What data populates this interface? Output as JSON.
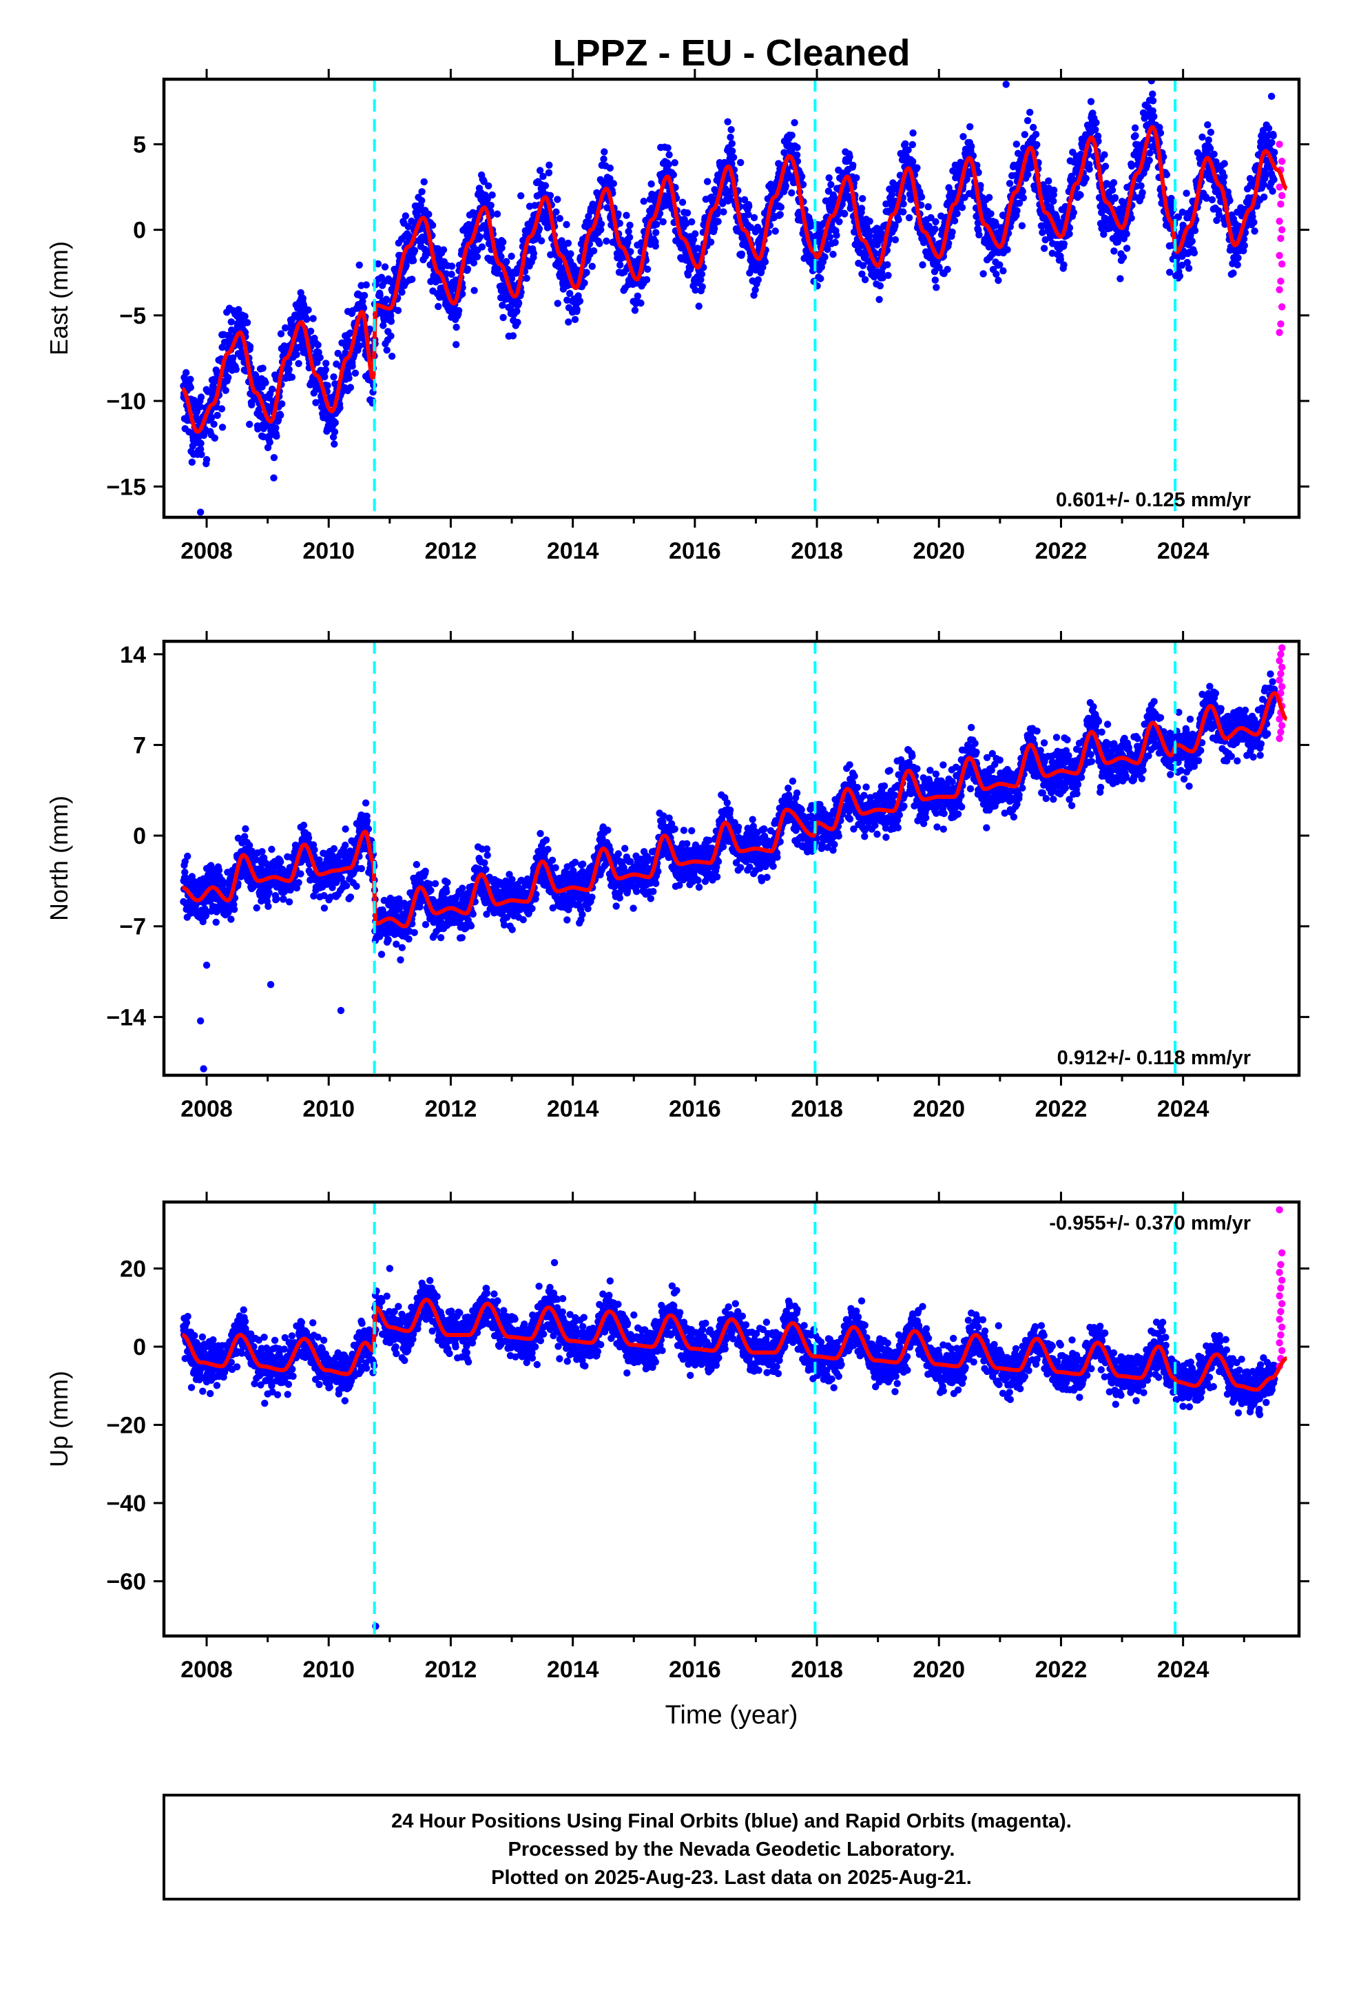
{
  "title": "LPPZ  - EU - Cleaned",
  "chart_data": [
    {
      "type": "scatter",
      "ylabel": "East (mm)",
      "xlim": [
        2007.3,
        2025.9
      ],
      "ylim": [
        -16.8,
        8.8
      ],
      "yticks": [
        5,
        0,
        -5,
        -10,
        -15
      ],
      "xticks": [
        2008,
        2010,
        2012,
        2014,
        2016,
        2018,
        2020,
        2022,
        2024
      ],
      "rate_text": "0.601+/- 0.125 mm/yr",
      "rate_position": "bottom-right",
      "steps": [
        2010.75,
        2017.97,
        2023.87
      ],
      "model": [
        [
          2007.6,
          -9.3
        ],
        [
          2007.85,
          -11.8
        ],
        [
          2008.1,
          -10.2
        ],
        [
          2008.35,
          -7.2
        ],
        [
          2008.55,
          -6.0
        ],
        [
          2008.8,
          -9.5
        ],
        [
          2009.05,
          -11.2
        ],
        [
          2009.3,
          -7.5
        ],
        [
          2009.55,
          -5.4
        ],
        [
          2009.8,
          -8.5
        ],
        [
          2010.05,
          -10.6
        ],
        [
          2010.3,
          -7.5
        ],
        [
          2010.55,
          -4.8
        ],
        [
          2010.73,
          -8.7
        ],
        [
          2010.77,
          -4.4
        ],
        [
          2011.0,
          -4.6
        ],
        [
          2011.3,
          -1.0
        ],
        [
          2011.55,
          0.7
        ],
        [
          2011.8,
          -2.5
        ],
        [
          2012.05,
          -4.3
        ],
        [
          2012.3,
          -0.8
        ],
        [
          2012.55,
          1.3
        ],
        [
          2012.8,
          -2.0
        ],
        [
          2013.05,
          -3.9
        ],
        [
          2013.3,
          -0.4
        ],
        [
          2013.55,
          1.9
        ],
        [
          2013.8,
          -1.5
        ],
        [
          2014.05,
          -3.4
        ],
        [
          2014.3,
          0.0
        ],
        [
          2014.55,
          2.4
        ],
        [
          2014.8,
          -1.0
        ],
        [
          2015.05,
          -2.9
        ],
        [
          2015.3,
          0.6
        ],
        [
          2015.55,
          3.1
        ],
        [
          2015.8,
          -0.5
        ],
        [
          2016.05,
          -2.2
        ],
        [
          2016.3,
          1.2
        ],
        [
          2016.55,
          3.7
        ],
        [
          2016.8,
          0.0
        ],
        [
          2017.05,
          -1.7
        ],
        [
          2017.3,
          1.9
        ],
        [
          2017.55,
          4.3
        ],
        [
          2017.95,
          -1.3
        ],
        [
          2018.0,
          -1.6
        ],
        [
          2018.25,
          0.8
        ],
        [
          2018.5,
          3.1
        ],
        [
          2018.75,
          -0.6
        ],
        [
          2019.0,
          -2.1
        ],
        [
          2019.25,
          0.9
        ],
        [
          2019.5,
          3.6
        ],
        [
          2019.75,
          -0.1
        ],
        [
          2020.0,
          -1.6
        ],
        [
          2020.25,
          1.5
        ],
        [
          2020.5,
          4.2
        ],
        [
          2020.75,
          0.3
        ],
        [
          2021.0,
          -1.0
        ],
        [
          2021.25,
          2.2
        ],
        [
          2021.5,
          4.8
        ],
        [
          2021.75,
          1.0
        ],
        [
          2022.0,
          -0.4
        ],
        [
          2022.25,
          2.7
        ],
        [
          2022.5,
          5.4
        ],
        [
          2022.75,
          1.6
        ],
        [
          2023.0,
          0.1
        ],
        [
          2023.25,
          3.3
        ],
        [
          2023.5,
          6.0
        ],
        [
          2023.8,
          0.5
        ],
        [
          2023.9,
          -1.3
        ],
        [
          2024.1,
          0.2
        ],
        [
          2024.4,
          4.2
        ],
        [
          2024.6,
          2.6
        ],
        [
          2024.85,
          -0.9
        ],
        [
          2025.1,
          1.2
        ],
        [
          2025.35,
          4.6
        ],
        [
          2025.55,
          3.5
        ],
        [
          2025.7,
          2.4
        ]
      ],
      "noise": 1.6,
      "rapid": [
        -6.0,
        -5.5,
        -4.5,
        -3.5,
        -3.0,
        -2.0,
        -1.5,
        -0.5,
        0.0,
        0.5,
        1.5,
        2.0,
        2.5,
        3.5,
        4.0,
        5.0
      ]
    },
    {
      "type": "scatter",
      "ylabel": "North (mm)",
      "xlim": [
        2007.3,
        2025.9
      ],
      "ylim": [
        -18.5,
        15.0
      ],
      "yticks": [
        14,
        7,
        0,
        -7,
        -14
      ],
      "xticks": [
        2008,
        2010,
        2012,
        2014,
        2016,
        2018,
        2020,
        2022,
        2024
      ],
      "rate_text": "0.912+/- 0.118 mm/yr",
      "rate_position": "bottom-right",
      "steps": [
        2010.75,
        2017.97,
        2023.87
      ],
      "model": [
        [
          2007.6,
          -4.0
        ],
        [
          2007.85,
          -5.0
        ],
        [
          2008.1,
          -4.0
        ],
        [
          2008.35,
          -5.0
        ],
        [
          2008.6,
          -1.5
        ],
        [
          2008.85,
          -3.5
        ],
        [
          2009.1,
          -3.2
        ],
        [
          2009.35,
          -3.5
        ],
        [
          2009.6,
          -0.7
        ],
        [
          2009.85,
          -3.0
        ],
        [
          2010.1,
          -2.7
        ],
        [
          2010.35,
          -2.5
        ],
        [
          2010.6,
          0.3
        ],
        [
          2010.73,
          -2.0
        ],
        [
          2010.77,
          -6.8
        ],
        [
          2011.0,
          -6.4
        ],
        [
          2011.25,
          -7.0
        ],
        [
          2011.5,
          -4.0
        ],
        [
          2011.75,
          -6.0
        ],
        [
          2012.0,
          -5.6
        ],
        [
          2012.25,
          -6.0
        ],
        [
          2012.5,
          -3.0
        ],
        [
          2012.75,
          -5.3
        ],
        [
          2013.0,
          -5.0
        ],
        [
          2013.25,
          -5.1
        ],
        [
          2013.5,
          -2.0
        ],
        [
          2013.75,
          -4.3
        ],
        [
          2014.0,
          -4.0
        ],
        [
          2014.25,
          -4.2
        ],
        [
          2014.5,
          -1.0
        ],
        [
          2014.75,
          -3.3
        ],
        [
          2015.0,
          -3.0
        ],
        [
          2015.25,
          -3.2
        ],
        [
          2015.5,
          0.0
        ],
        [
          2015.75,
          -2.2
        ],
        [
          2016.0,
          -2.0
        ],
        [
          2016.25,
          -2.1
        ],
        [
          2016.5,
          1.0
        ],
        [
          2016.75,
          -1.2
        ],
        [
          2017.0,
          -1.0
        ],
        [
          2017.25,
          -1.2
        ],
        [
          2017.5,
          2.0
        ],
        [
          2017.95,
          0.0
        ],
        [
          2018.0,
          1.0
        ],
        [
          2018.25,
          0.5
        ],
        [
          2018.5,
          3.6
        ],
        [
          2018.75,
          1.7
        ],
        [
          2019.0,
          2.0
        ],
        [
          2019.25,
          1.9
        ],
        [
          2019.5,
          5.0
        ],
        [
          2019.75,
          2.8
        ],
        [
          2020.0,
          3.0
        ],
        [
          2020.25,
          3.0
        ],
        [
          2020.5,
          6.0
        ],
        [
          2020.75,
          3.6
        ],
        [
          2021.0,
          4.0
        ],
        [
          2021.25,
          3.8
        ],
        [
          2021.5,
          7.0
        ],
        [
          2021.75,
          4.6
        ],
        [
          2022.0,
          5.0
        ],
        [
          2022.25,
          4.8
        ],
        [
          2022.5,
          8.0
        ],
        [
          2022.75,
          5.6
        ],
        [
          2023.0,
          6.0
        ],
        [
          2023.25,
          5.6
        ],
        [
          2023.5,
          8.7
        ],
        [
          2023.8,
          6.2
        ],
        [
          2023.9,
          7.0
        ],
        [
          2024.15,
          6.5
        ],
        [
          2024.45,
          10.0
        ],
        [
          2024.7,
          7.5
        ],
        [
          2024.95,
          8.3
        ],
        [
          2025.2,
          7.8
        ],
        [
          2025.5,
          11.0
        ],
        [
          2025.7,
          9.0
        ]
      ],
      "noise": 1.5,
      "rapid": [
        7.5,
        8.0,
        8.5,
        9.0,
        9.5,
        10.0,
        10.5,
        11.0,
        11.5,
        12.0,
        12.5,
        13.0,
        13.5,
        14.0,
        14.5
      ]
    },
    {
      "type": "scatter",
      "ylabel": "Up (mm)",
      "xlabel": "Time (year)",
      "xlim": [
        2007.3,
        2025.9
      ],
      "ylim": [
        -74,
        37
      ],
      "yticks": [
        20,
        0,
        -20,
        -40,
        -60
      ],
      "xticks": [
        2008,
        2010,
        2012,
        2014,
        2016,
        2018,
        2020,
        2022,
        2024
      ],
      "rate_text": "-0.955+/- 0.370 mm/yr",
      "rate_position": "top-right",
      "steps": [
        2010.75,
        2017.97,
        2023.87
      ],
      "model": [
        [
          2007.6,
          3.0
        ],
        [
          2007.9,
          -4.0
        ],
        [
          2008.25,
          -5.0
        ],
        [
          2008.55,
          3.0
        ],
        [
          2008.9,
          -5.0
        ],
        [
          2009.25,
          -6.0
        ],
        [
          2009.6,
          2.0
        ],
        [
          2009.95,
          -6.0
        ],
        [
          2010.3,
          -7.0
        ],
        [
          2010.6,
          1.0
        ],
        [
          2010.73,
          -1.0
        ],
        [
          2010.77,
          10.0
        ],
        [
          2011.0,
          5.0
        ],
        [
          2011.3,
          4.0
        ],
        [
          2011.6,
          12.0
        ],
        [
          2011.95,
          3.0
        ],
        [
          2012.3,
          3.0
        ],
        [
          2012.6,
          11.0
        ],
        [
          2012.95,
          2.5
        ],
        [
          2013.3,
          2.0
        ],
        [
          2013.6,
          10.0
        ],
        [
          2013.95,
          1.5
        ],
        [
          2014.3,
          1.0
        ],
        [
          2014.6,
          9.0
        ],
        [
          2014.95,
          0.5
        ],
        [
          2015.3,
          0.0
        ],
        [
          2015.6,
          8.0
        ],
        [
          2015.95,
          -0.5
        ],
        [
          2016.3,
          -1.0
        ],
        [
          2016.6,
          7.0
        ],
        [
          2016.95,
          -1.5
        ],
        [
          2017.3,
          -1.5
        ],
        [
          2017.6,
          6.0
        ],
        [
          2017.95,
          -2.5
        ],
        [
          2018.0,
          -2.5
        ],
        [
          2018.3,
          -3.0
        ],
        [
          2018.6,
          5.0
        ],
        [
          2018.95,
          -3.5
        ],
        [
          2019.3,
          -4.0
        ],
        [
          2019.6,
          4.0
        ],
        [
          2019.95,
          -4.5
        ],
        [
          2020.3,
          -5.0
        ],
        [
          2020.6,
          3.0
        ],
        [
          2020.95,
          -5.5
        ],
        [
          2021.3,
          -6.0
        ],
        [
          2021.6,
          2.0
        ],
        [
          2021.95,
          -6.5
        ],
        [
          2022.3,
          -7.0
        ],
        [
          2022.6,
          1.0
        ],
        [
          2022.95,
          -7.5
        ],
        [
          2023.3,
          -8.0
        ],
        [
          2023.6,
          0.0
        ],
        [
          2023.85,
          -8.0
        ],
        [
          2023.9,
          -9.0
        ],
        [
          2024.2,
          -10.0
        ],
        [
          2024.55,
          -2.0
        ],
        [
          2024.9,
          -10.0
        ],
        [
          2025.2,
          -11.0
        ],
        [
          2025.45,
          -8.0
        ],
        [
          2025.7,
          -3.0
        ]
      ],
      "noise": 4.5,
      "rapid": [
        -5.0,
        -3.0,
        -1.0,
        1.0,
        3.0,
        5.0,
        7.0,
        9.0,
        11.0,
        13.0,
        15.0,
        17.0,
        19.0,
        21.0,
        24.0,
        35.0
      ]
    }
  ],
  "footer": {
    "line1": "24 Hour Positions Using Final Orbits (blue) and Rapid Orbits (magenta).",
    "line2": "Processed by the Nevada Geodetic Laboratory.",
    "line3": "Plotted on 2025-Aug-23. Last data on 2025-Aug-21."
  },
  "colors": {
    "final_orbits": "#0000ff",
    "rapid_orbits": "#ff00ff",
    "model": "#ff0000",
    "steps": "#00ffff",
    "frame": "#000000"
  }
}
